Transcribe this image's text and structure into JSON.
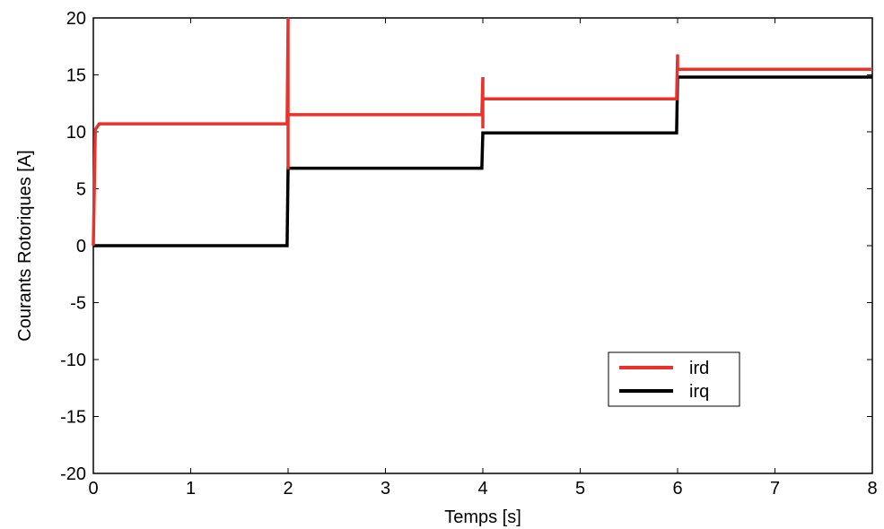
{
  "chart_data": {
    "type": "line",
    "title": "",
    "xlabel": "Temps [s]",
    "ylabel": "Courants Rotoriques [A]",
    "xlim": [
      0,
      8
    ],
    "ylim": [
      -20,
      20
    ],
    "xticks": [
      0,
      1,
      2,
      3,
      4,
      5,
      6,
      7,
      8
    ],
    "yticks": [
      -20,
      -15,
      -10,
      -5,
      0,
      5,
      10,
      15,
      20
    ],
    "grid": false,
    "legend_position": "bottom-right",
    "series": [
      {
        "name": "ird",
        "color": "#e8322b",
        "x": [
          0,
          0.02,
          0.06,
          1.99,
          2.0,
          2.0,
          2.0,
          2.01,
          3.99,
          4.0,
          4.0,
          4.0,
          4.01,
          5.99,
          6.0,
          6.0,
          6.01,
          8
        ],
        "y": [
          0,
          10.2,
          10.7,
          10.7,
          20,
          6.7,
          11.5,
          11.5,
          11.5,
          14.8,
          10.3,
          12.9,
          12.9,
          12.9,
          16.8,
          15.5,
          15.5,
          15.5
        ]
      },
      {
        "name": "irq",
        "color": "#000000",
        "x": [
          0,
          1.99,
          2.0,
          2.01,
          3.99,
          4.0,
          4.01,
          5.99,
          6.0,
          6.01,
          8
        ],
        "y": [
          0,
          0,
          6.8,
          6.8,
          6.8,
          9.9,
          9.9,
          9.9,
          14.8,
          14.8,
          14.8
        ]
      }
    ]
  }
}
